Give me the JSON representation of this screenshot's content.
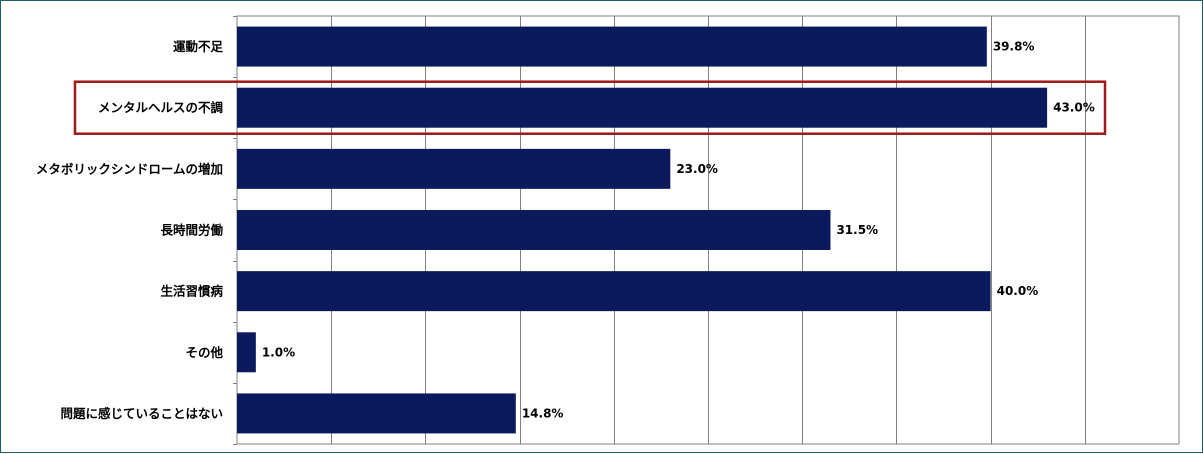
{
  "chart_data": {
    "type": "bar",
    "orientation": "horizontal",
    "categories": [
      "運動不足",
      "メンタルヘルスの不調",
      "メタボリックシンドロームの増加",
      "長時間労働",
      "生活習慣病",
      "その他",
      "問題に感じていることはない"
    ],
    "values": [
      39.8,
      43.0,
      23.0,
      31.5,
      40.0,
      1.0,
      14.8
    ],
    "value_labels": [
      "39.8%",
      "43.0%",
      "23.0%",
      "31.5%",
      "40.0%",
      "1.0%",
      "14.8%"
    ],
    "xlim": [
      0,
      50
    ],
    "x_gridline_step": 5,
    "grid": true,
    "bar_color": "#0b1a5c",
    "highlight": {
      "category": "メンタルヘルスの不調",
      "color": "#a01818"
    },
    "title": "",
    "xlabel": "",
    "ylabel": ""
  }
}
